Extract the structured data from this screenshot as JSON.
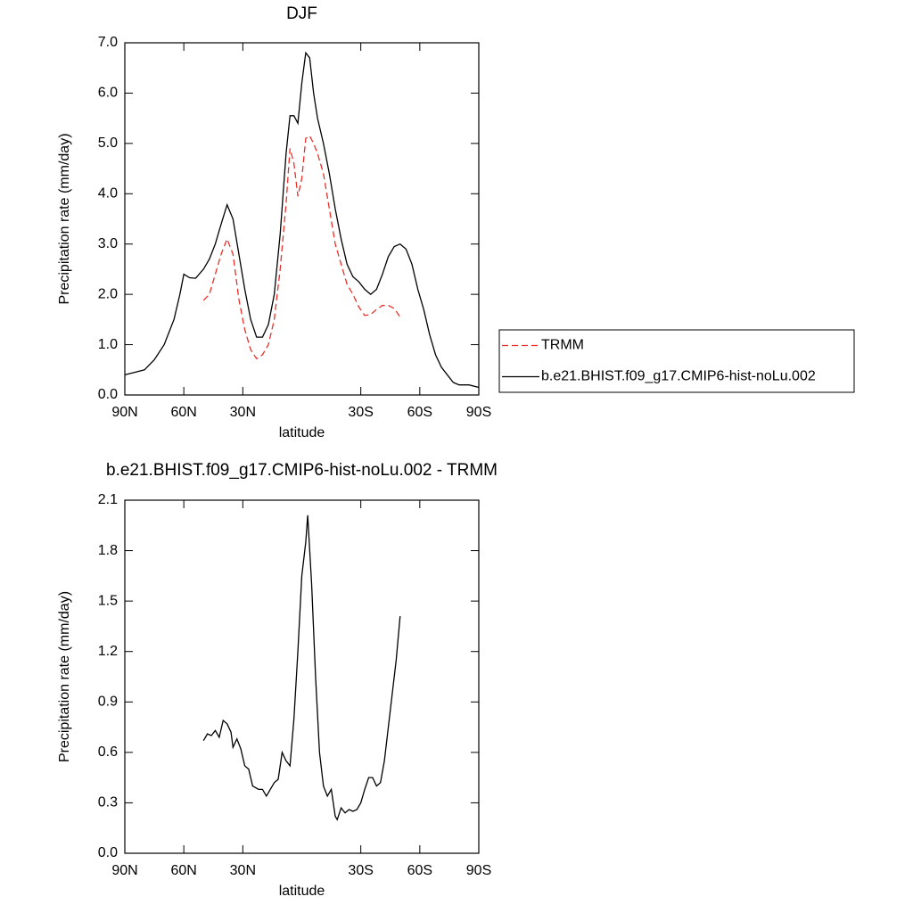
{
  "chart_data": [
    {
      "type": "line",
      "title": "DJF",
      "xlabel": "latitude",
      "ylabel": "Precipitation rate (mm/day)",
      "x": [
        90,
        85,
        80,
        75,
        70,
        65,
        62,
        60,
        57,
        54,
        50,
        47,
        44,
        41,
        38,
        35,
        32,
        29,
        26,
        23,
        20,
        17,
        14,
        11,
        8,
        6,
        4,
        2,
        0,
        -2,
        -4,
        -6,
        -8,
        -11,
        -14,
        -17,
        -20,
        -23,
        -26,
        -29,
        -32,
        -35,
        -38,
        -41,
        -44,
        -47,
        -50,
        -53,
        -56,
        -59,
        -62,
        -65,
        -68,
        -71,
        -74,
        -77,
        -80,
        -85,
        -90
      ],
      "series": [
        {
          "name": "TRMM",
          "color": "#e8302a",
          "line_style": "dashed",
          "values": [
            null,
            null,
            null,
            null,
            null,
            null,
            null,
            null,
            null,
            null,
            1.88,
            2.0,
            2.4,
            2.8,
            3.1,
            2.8,
            1.9,
            1.3,
            0.9,
            0.72,
            0.8,
            1.0,
            1.5,
            2.5,
            3.8,
            4.9,
            4.6,
            3.95,
            4.3,
            5.1,
            5.15,
            5.0,
            4.8,
            4.4,
            3.7,
            3.0,
            2.6,
            2.2,
            2.0,
            1.75,
            1.58,
            1.6,
            1.7,
            1.78,
            1.78,
            1.72,
            1.55,
            null,
            null,
            null,
            null,
            null,
            null,
            null,
            null,
            null,
            null,
            null,
            null
          ]
        },
        {
          "name": "b.e21.BHIST.f09_g17.CMIP6-hist-noLu.002",
          "color": "#000000",
          "line_style": "solid",
          "values": [
            0.4,
            0.45,
            0.5,
            0.7,
            1.0,
            1.5,
            2.0,
            2.4,
            2.33,
            2.32,
            2.5,
            2.7,
            3.0,
            3.4,
            3.78,
            3.5,
            2.8,
            2.1,
            1.5,
            1.15,
            1.15,
            1.4,
            2.0,
            3.2,
            4.8,
            5.55,
            5.55,
            5.4,
            6.2,
            6.8,
            6.7,
            6.0,
            5.5,
            5.0,
            4.4,
            3.7,
            3.1,
            2.6,
            2.35,
            2.25,
            2.1,
            2.0,
            2.1,
            2.4,
            2.75,
            2.95,
            3.0,
            2.9,
            2.6,
            2.1,
            1.7,
            1.2,
            0.8,
            0.55,
            0.4,
            0.25,
            0.2,
            0.2,
            0.15
          ]
        }
      ],
      "xlim": [
        90,
        -90
      ],
      "xticks": [
        {
          "value": 90,
          "label": "90N"
        },
        {
          "value": 60,
          "label": "60N"
        },
        {
          "value": 30,
          "label": "30N"
        },
        {
          "value": -30,
          "label": "30S"
        },
        {
          "value": -60,
          "label": "60S"
        },
        {
          "value": -90,
          "label": "90S"
        }
      ],
      "ylim": [
        0,
        7
      ],
      "yticks": [
        {
          "value": 0,
          "label": "0.0"
        },
        {
          "value": 1,
          "label": "1.0"
        },
        {
          "value": 2,
          "label": "2.0"
        },
        {
          "value": 3,
          "label": "3.0"
        },
        {
          "value": 4,
          "label": "4.0"
        },
        {
          "value": 5,
          "label": "5.0"
        },
        {
          "value": 6,
          "label": "6.0"
        },
        {
          "value": 7,
          "label": "7.0"
        }
      ],
      "grid": false,
      "legend": "right"
    },
    {
      "type": "line",
      "title": "b.e21.BHIST.f09_g17.CMIP6-hist-noLu.002 - TRMM",
      "xlabel": "latitude",
      "ylabel": "Precipitation rate (mm/day)",
      "x": [
        50,
        48,
        46,
        44,
        42,
        40,
        38,
        36,
        35,
        33,
        31,
        29,
        27,
        25,
        22,
        20,
        18,
        16,
        14,
        12,
        10,
        8,
        6,
        4,
        2,
        0,
        -2,
        -3,
        -5,
        -7,
        -9,
        -11,
        -13,
        -15,
        -17,
        -18,
        -20,
        -22,
        -24,
        -26,
        -28,
        -30,
        -32,
        -34,
        -36,
        -38,
        -40,
        -42,
        -44,
        -46,
        -48,
        -50
      ],
      "values": [
        0.67,
        0.71,
        0.7,
        0.73,
        0.69,
        0.79,
        0.77,
        0.72,
        0.63,
        0.68,
        0.62,
        0.52,
        0.5,
        0.4,
        0.38,
        0.38,
        0.34,
        0.38,
        0.42,
        0.44,
        0.6,
        0.55,
        0.52,
        0.8,
        1.2,
        1.65,
        1.85,
        2.01,
        1.6,
        1.05,
        0.6,
        0.4,
        0.34,
        0.38,
        0.22,
        0.2,
        0.27,
        0.24,
        0.26,
        0.25,
        0.26,
        0.3,
        0.38,
        0.45,
        0.45,
        0.4,
        0.42,
        0.55,
        0.75,
        0.95,
        1.15,
        1.41
      ],
      "color": "#000000",
      "xlim": [
        90,
        -90
      ],
      "xticks": [
        {
          "value": 90,
          "label": "90N"
        },
        {
          "value": 60,
          "label": "60N"
        },
        {
          "value": 30,
          "label": "30N"
        },
        {
          "value": -30,
          "label": "30S"
        },
        {
          "value": -60,
          "label": "60S"
        },
        {
          "value": -90,
          "label": "90S"
        }
      ],
      "ylim": [
        0,
        2.1
      ],
      "yticks": [
        {
          "value": 0,
          "label": "0.0"
        },
        0.3,
        0.6,
        0.9,
        1.2,
        1.5,
        1.8,
        2.1
      ],
      "grid": false
    }
  ]
}
